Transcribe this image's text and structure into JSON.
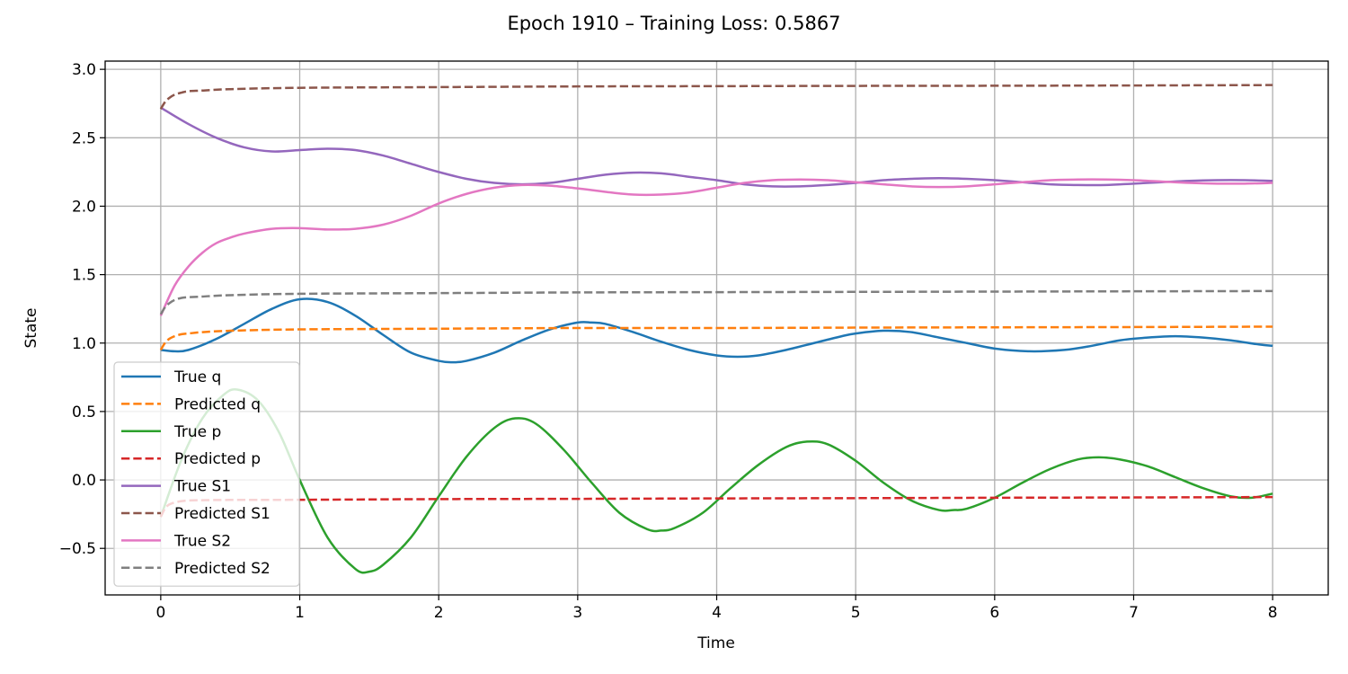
{
  "chart_data": {
    "type": "line",
    "title": "Epoch 1910 – Training Loss: 0.5867",
    "xlabel": "Time",
    "ylabel": "State",
    "xlim": [
      -0.4,
      8.4
    ],
    "ylim": [
      -0.84,
      3.06
    ],
    "xticks": [
      0,
      1,
      2,
      3,
      4,
      5,
      6,
      7,
      8
    ],
    "xtick_labels": [
      "0",
      "1",
      "2",
      "3",
      "4",
      "5",
      "6",
      "7",
      "8"
    ],
    "yticks": [
      -0.5,
      0.0,
      0.5,
      1.0,
      1.5,
      2.0,
      2.5,
      3.0
    ],
    "ytick_labels": [
      "−0.5",
      "0.0",
      "0.5",
      "1.0",
      "1.5",
      "2.0",
      "2.5",
      "3.0"
    ],
    "grid": true,
    "legend_position": "lower-left",
    "series": [
      {
        "name": "True q",
        "color": "#1f77b4",
        "dash": "solid",
        "x": [
          0,
          0.1,
          0.2,
          0.4,
          0.6,
          0.8,
          1.0,
          1.2,
          1.4,
          1.6,
          1.8,
          2.0,
          2.1,
          2.2,
          2.4,
          2.6,
          2.8,
          3.0,
          3.1,
          3.2,
          3.4,
          3.6,
          3.8,
          4.0,
          4.15,
          4.3,
          4.5,
          4.7,
          4.9,
          5.0,
          5.2,
          5.4,
          5.6,
          5.8,
          6.0,
          6.25,
          6.5,
          6.7,
          6.9,
          7.1,
          7.3,
          7.5,
          7.7,
          7.9,
          8.0
        ],
        "y": [
          0.95,
          0.94,
          0.95,
          1.03,
          1.14,
          1.25,
          1.32,
          1.3,
          1.2,
          1.06,
          0.93,
          0.87,
          0.86,
          0.87,
          0.93,
          1.02,
          1.1,
          1.15,
          1.15,
          1.14,
          1.08,
          1.01,
          0.95,
          0.91,
          0.9,
          0.91,
          0.95,
          1.0,
          1.05,
          1.07,
          1.09,
          1.08,
          1.04,
          1.0,
          0.96,
          0.94,
          0.95,
          0.98,
          1.02,
          1.04,
          1.05,
          1.04,
          1.02,
          0.99,
          0.98
        ]
      },
      {
        "name": "Predicted q",
        "color": "#ff7f0e",
        "dash": "dashed",
        "x": [
          0,
          0.03,
          0.06,
          0.1,
          0.15,
          0.2,
          0.3,
          0.5,
          1.0,
          2.0,
          3.0,
          4.0,
          5.0,
          6.0,
          7.0,
          8.0
        ],
        "y": [
          0.95,
          1.0,
          1.03,
          1.05,
          1.065,
          1.07,
          1.08,
          1.09,
          1.1,
          1.105,
          1.11,
          1.11,
          1.113,
          1.115,
          1.117,
          1.12
        ]
      },
      {
        "name": "True p",
        "color": "#2ca02c",
        "dash": "solid",
        "x": [
          0,
          0.15,
          0.3,
          0.45,
          0.55,
          0.7,
          0.85,
          1.0,
          1.2,
          1.4,
          1.5,
          1.6,
          1.8,
          2.0,
          2.2,
          2.4,
          2.55,
          2.7,
          2.9,
          3.1,
          3.3,
          3.5,
          3.6,
          3.7,
          3.9,
          4.1,
          4.3,
          4.5,
          4.65,
          4.8,
          5.0,
          5.2,
          5.4,
          5.6,
          5.7,
          5.8,
          6.0,
          6.2,
          6.4,
          6.6,
          6.75,
          6.9,
          7.1,
          7.3,
          7.5,
          7.7,
          7.85,
          8.0
        ],
        "y": [
          -0.27,
          0.15,
          0.45,
          0.62,
          0.66,
          0.58,
          0.35,
          0.0,
          -0.42,
          -0.65,
          -0.67,
          -0.62,
          -0.42,
          -0.12,
          0.17,
          0.38,
          0.45,
          0.41,
          0.22,
          -0.02,
          -0.24,
          -0.36,
          -0.37,
          -0.35,
          -0.24,
          -0.06,
          0.11,
          0.24,
          0.28,
          0.26,
          0.14,
          -0.02,
          -0.15,
          -0.22,
          -0.22,
          -0.21,
          -0.13,
          -0.02,
          0.08,
          0.15,
          0.165,
          0.15,
          0.1,
          0.02,
          -0.06,
          -0.12,
          -0.13,
          -0.1
        ]
      },
      {
        "name": "Predicted p",
        "color": "#d62728",
        "dash": "dashed",
        "x": [
          0,
          0.03,
          0.06,
          0.1,
          0.15,
          0.2,
          0.3,
          0.5,
          1.0,
          2.0,
          3.0,
          4.0,
          5.0,
          6.0,
          7.0,
          8.0
        ],
        "y": [
          -0.27,
          -0.21,
          -0.18,
          -0.165,
          -0.155,
          -0.15,
          -0.148,
          -0.146,
          -0.145,
          -0.14,
          -0.138,
          -0.135,
          -0.133,
          -0.13,
          -0.128,
          -0.125
        ]
      },
      {
        "name": "True S1",
        "color": "#9467bd",
        "dash": "solid",
        "x": [
          0,
          0.2,
          0.4,
          0.6,
          0.8,
          1.0,
          1.2,
          1.4,
          1.6,
          1.8,
          2.0,
          2.2,
          2.4,
          2.6,
          2.8,
          3.0,
          3.2,
          3.4,
          3.6,
          3.8,
          4.0,
          4.2,
          4.4,
          4.6,
          4.8,
          5.0,
          5.2,
          5.4,
          5.6,
          5.8,
          6.0,
          6.2,
          6.4,
          6.6,
          6.8,
          7.0,
          7.2,
          7.4,
          7.6,
          7.8,
          8.0
        ],
        "y": [
          2.72,
          2.6,
          2.5,
          2.43,
          2.4,
          2.41,
          2.42,
          2.41,
          2.37,
          2.31,
          2.25,
          2.2,
          2.17,
          2.16,
          2.17,
          2.2,
          2.23,
          2.245,
          2.24,
          2.215,
          2.19,
          2.16,
          2.145,
          2.145,
          2.155,
          2.17,
          2.19,
          2.2,
          2.205,
          2.2,
          2.19,
          2.175,
          2.16,
          2.155,
          2.155,
          2.165,
          2.175,
          2.185,
          2.19,
          2.19,
          2.185
        ]
      },
      {
        "name": "Predicted S1",
        "color": "#8c564b",
        "dash": "dashed",
        "x": [
          0,
          0.03,
          0.06,
          0.1,
          0.15,
          0.2,
          0.3,
          0.5,
          1.0,
          2.0,
          3.0,
          4.0,
          5.0,
          6.0,
          7.0,
          8.0
        ],
        "y": [
          2.71,
          2.76,
          2.79,
          2.815,
          2.83,
          2.84,
          2.845,
          2.855,
          2.865,
          2.87,
          2.875,
          2.877,
          2.879,
          2.88,
          2.882,
          2.885
        ]
      },
      {
        "name": "True S2",
        "color": "#e377c2",
        "dash": "solid",
        "x": [
          0,
          0.1,
          0.2,
          0.3,
          0.4,
          0.5,
          0.6,
          0.8,
          1.0,
          1.2,
          1.4,
          1.6,
          1.8,
          2.0,
          2.2,
          2.4,
          2.6,
          2.8,
          3.0,
          3.2,
          3.4,
          3.6,
          3.8,
          4.0,
          4.2,
          4.4,
          4.6,
          4.8,
          5.0,
          5.2,
          5.4,
          5.6,
          5.8,
          6.0,
          6.2,
          6.4,
          6.6,
          6.8,
          7.0,
          7.2,
          7.4,
          7.6,
          7.8,
          8.0
        ],
        "y": [
          1.2,
          1.42,
          1.56,
          1.66,
          1.73,
          1.77,
          1.8,
          1.835,
          1.84,
          1.83,
          1.835,
          1.865,
          1.93,
          2.02,
          2.09,
          2.135,
          2.155,
          2.15,
          2.13,
          2.105,
          2.085,
          2.085,
          2.1,
          2.135,
          2.17,
          2.19,
          2.195,
          2.19,
          2.175,
          2.16,
          2.145,
          2.14,
          2.145,
          2.16,
          2.175,
          2.19,
          2.195,
          2.195,
          2.19,
          2.18,
          2.17,
          2.165,
          2.165,
          2.17
        ]
      },
      {
        "name": "Predicted S2",
        "color": "#7f7f7f",
        "dash": "dashed",
        "x": [
          0,
          0.03,
          0.06,
          0.1,
          0.15,
          0.2,
          0.3,
          0.5,
          1.0,
          2.0,
          3.0,
          4.0,
          5.0,
          6.0,
          7.0,
          8.0
        ],
        "y": [
          1.21,
          1.26,
          1.29,
          1.315,
          1.33,
          1.335,
          1.34,
          1.35,
          1.36,
          1.365,
          1.37,
          1.372,
          1.374,
          1.376,
          1.378,
          1.38
        ]
      }
    ]
  }
}
